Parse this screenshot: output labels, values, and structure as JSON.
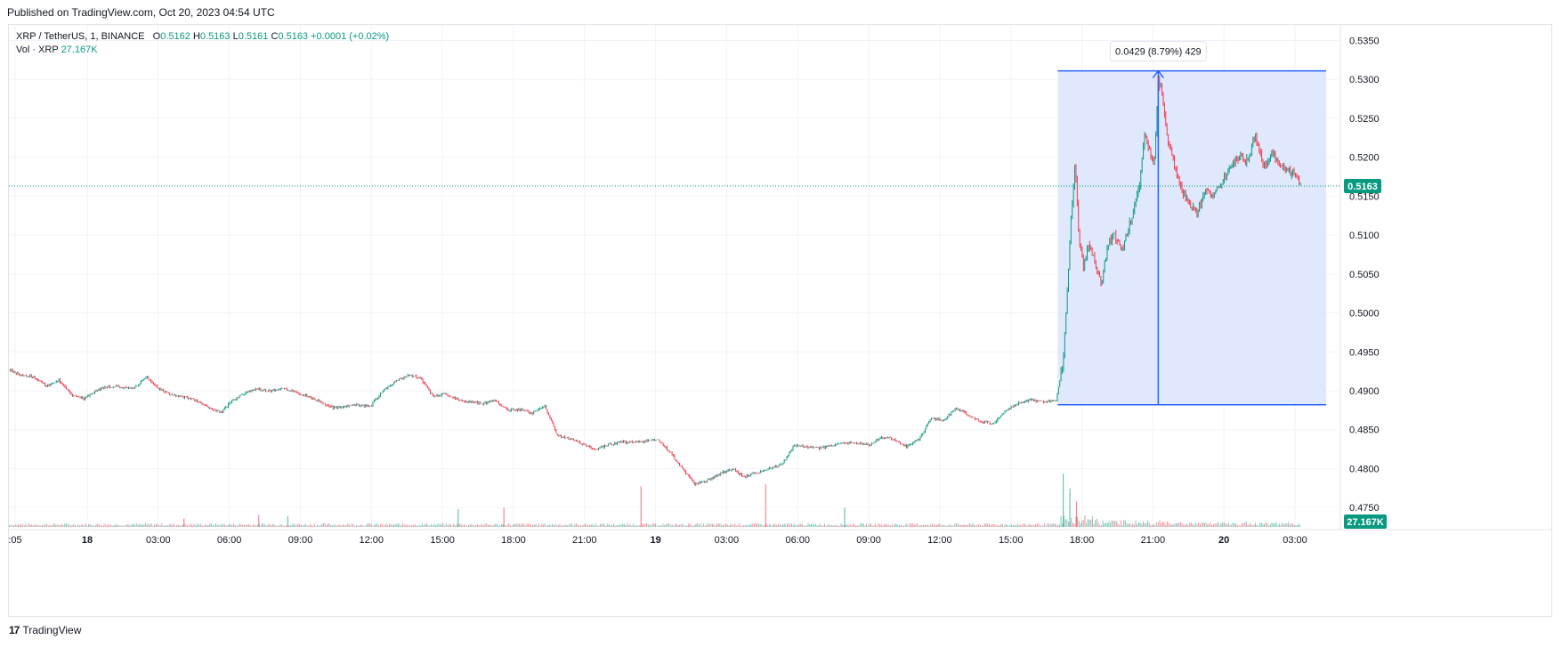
{
  "header": {
    "published": "Published on TradingView.com, Oct 20, 2023 04:54 UTC"
  },
  "legend": {
    "symbol": "XRP / TetherUS, 1, BINANCE",
    "open_label": "O",
    "open": "0.5162",
    "high_label": "H",
    "high": "0.5163",
    "low_label": "L",
    "low": "0.5161",
    "close_label": "C",
    "close": "0.5163",
    "change": "+0.0001 (+0.02%)",
    "volume_label": "Vol · XRP",
    "volume": "27.167K"
  },
  "footer": {
    "logo_text": "17",
    "brand": "TradingView"
  },
  "colors": {
    "up": "#089981",
    "down": "#f23645",
    "measure": "#2962ff",
    "measure_fill": "#dbe4fd",
    "grid": "#f0f3fa"
  },
  "chart_data": {
    "type": "candlestick",
    "y_axis_labels": [
      "0.5350",
      "0.5300",
      "0.5250",
      "0.5200",
      "0.5150",
      "0.5100",
      "0.5050",
      "0.5000",
      "0.4950",
      "0.4900",
      "0.4850",
      "0.4800",
      "0.4750"
    ],
    "ylim": [
      0.4725,
      0.537
    ],
    "x_axis_labels": [
      ":05",
      "18",
      "03:00",
      "06:00",
      "09:00",
      "12:00",
      "15:00",
      "18:00",
      "21:00",
      "19",
      "03:00",
      "06:00",
      "09:00",
      "12:00",
      "15:00",
      "18:00",
      "21:00",
      "20",
      "03:00"
    ],
    "bold_x_labels": [
      "18",
      "19",
      "20"
    ],
    "last_price": "0.5163",
    "last_volume": "27.167K",
    "measure": {
      "label": "0.0429 (8.79%) 429",
      "from_price": 0.4882,
      "to_price": 0.5311
    },
    "price_path": [
      [
        0,
        0.4927
      ],
      [
        1.5,
        0.492
      ],
      [
        3,
        0.4918
      ],
      [
        4.5,
        0.4906
      ],
      [
        6,
        0.4914
      ],
      [
        7.5,
        0.4895
      ],
      [
        9,
        0.489
      ],
      [
        10.5,
        0.49
      ],
      [
        12,
        0.4906
      ],
      [
        13.5,
        0.4904
      ],
      [
        15,
        0.4903
      ],
      [
        16.5,
        0.4918
      ],
      [
        18,
        0.4903
      ],
      [
        19.5,
        0.4895
      ],
      [
        21,
        0.4892
      ],
      [
        22.5,
        0.4888
      ],
      [
        24,
        0.4878
      ],
      [
        25.5,
        0.4872
      ],
      [
        27,
        0.4888
      ],
      [
        28.5,
        0.4898
      ],
      [
        30,
        0.4902
      ],
      [
        31.5,
        0.49
      ],
      [
        33,
        0.4903
      ],
      [
        34.5,
        0.4898
      ],
      [
        36,
        0.4893
      ],
      [
        37.5,
        0.4886
      ],
      [
        39,
        0.4878
      ],
      [
        40.5,
        0.488
      ],
      [
        42,
        0.4882
      ],
      [
        43.5,
        0.488
      ],
      [
        45,
        0.49
      ],
      [
        46.5,
        0.4912
      ],
      [
        48,
        0.492
      ],
      [
        49.5,
        0.4917
      ],
      [
        51,
        0.4893
      ],
      [
        52.5,
        0.4895
      ],
      [
        54,
        0.4888
      ],
      [
        55.5,
        0.4886
      ],
      [
        57,
        0.4883
      ],
      [
        58.5,
        0.4888
      ],
      [
        60,
        0.4875
      ],
      [
        61.5,
        0.4876
      ],
      [
        63,
        0.4871
      ],
      [
        64.5,
        0.488
      ],
      [
        66,
        0.4842
      ],
      [
        67.5,
        0.4838
      ],
      [
        69,
        0.4832
      ],
      [
        70.5,
        0.4824
      ],
      [
        72,
        0.483
      ],
      [
        73.5,
        0.4834
      ],
      [
        75,
        0.4834
      ],
      [
        76.5,
        0.4835
      ],
      [
        78,
        0.4838
      ],
      [
        79.5,
        0.4822
      ],
      [
        81,
        0.48
      ],
      [
        82.5,
        0.478
      ],
      [
        84,
        0.4785
      ],
      [
        85.5,
        0.4793
      ],
      [
        87,
        0.48
      ],
      [
        88.5,
        0.479
      ],
      [
        90,
        0.4795
      ],
      [
        91.5,
        0.48
      ],
      [
        93,
        0.4805
      ],
      [
        94.5,
        0.483
      ],
      [
        96,
        0.4828
      ],
      [
        97.5,
        0.4826
      ],
      [
        99,
        0.483
      ],
      [
        100.5,
        0.4833
      ],
      [
        102,
        0.4833
      ],
      [
        103.5,
        0.483
      ],
      [
        105,
        0.484
      ],
      [
        106.5,
        0.4838
      ],
      [
        108,
        0.4828
      ],
      [
        109.5,
        0.4838
      ],
      [
        111,
        0.4865
      ],
      [
        112.5,
        0.4862
      ],
      [
        114,
        0.4878
      ],
      [
        115.5,
        0.4868
      ],
      [
        117,
        0.486
      ],
      [
        118.5,
        0.4858
      ],
      [
        120,
        0.4875
      ],
      [
        121.5,
        0.4884
      ],
      [
        123,
        0.4888
      ],
      [
        124.5,
        0.4886
      ],
      [
        126,
        0.4888
      ],
      [
        126.8,
        0.4935
      ],
      [
        127.2,
        0.5
      ],
      [
        127.8,
        0.512
      ],
      [
        128.3,
        0.5195
      ],
      [
        128.8,
        0.509
      ],
      [
        129.3,
        0.506
      ],
      [
        130,
        0.509
      ],
      [
        130.8,
        0.506
      ],
      [
        131.5,
        0.504
      ],
      [
        132.3,
        0.509
      ],
      [
        133,
        0.51
      ],
      [
        134,
        0.508
      ],
      [
        135,
        0.512
      ],
      [
        136,
        0.516
      ],
      [
        136.6,
        0.523
      ],
      [
        137.2,
        0.521
      ],
      [
        137.8,
        0.519
      ],
      [
        138.3,
        0.53
      ],
      [
        138.8,
        0.528
      ],
      [
        139.3,
        0.523
      ],
      [
        140,
        0.52
      ],
      [
        141,
        0.516
      ],
      [
        142,
        0.514
      ],
      [
        143,
        0.513
      ],
      [
        144,
        0.516
      ],
      [
        145,
        0.515
      ],
      [
        146,
        0.517
      ],
      [
        147,
        0.519
      ],
      [
        148,
        0.52
      ],
      [
        149,
        0.5195
      ],
      [
        150,
        0.523
      ],
      [
        151,
        0.5185
      ],
      [
        152,
        0.5205
      ],
      [
        153,
        0.519
      ],
      [
        154,
        0.5182
      ],
      [
        155,
        0.5175
      ],
      [
        155.5,
        0.5163
      ]
    ],
    "volume_spikes": [
      {
        "t": 54.0,
        "v": 0.42,
        "up": true
      },
      {
        "t": 59.5,
        "v": 0.45,
        "up": false
      },
      {
        "t": 76.0,
        "v": 0.95,
        "up": false
      },
      {
        "t": 91.0,
        "v": 1.0,
        "up": false
      },
      {
        "t": 30.0,
        "v": 0.28,
        "up": false
      },
      {
        "t": 33.5,
        "v": 0.25,
        "up": true
      },
      {
        "t": 21.0,
        "v": 0.2,
        "up": false
      },
      {
        "t": 100.5,
        "v": 0.45,
        "up": true
      },
      {
        "t": 126.8,
        "v": 1.25,
        "up": true
      },
      {
        "t": 127.6,
        "v": 0.9,
        "up": true
      },
      {
        "t": 128.4,
        "v": 0.6,
        "up": false
      }
    ]
  }
}
